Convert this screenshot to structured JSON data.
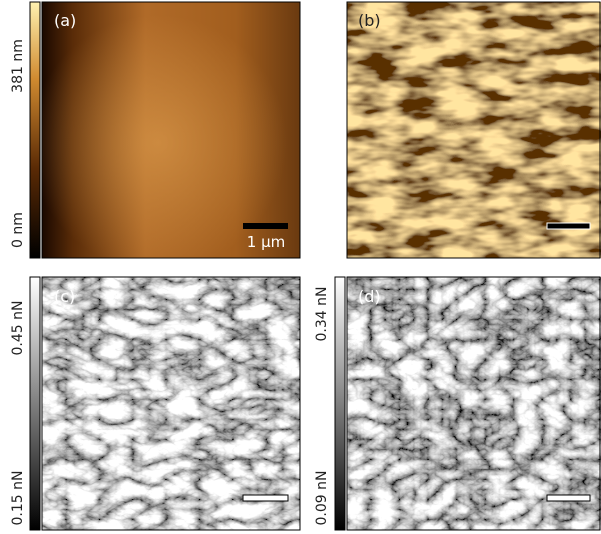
{
  "panels": [
    {
      "label": "(a)",
      "colorbar_max": "381 nm",
      "colorbar_min": "0 nm",
      "scale_bar": "1 µm"
    },
    {
      "label": "(b)"
    },
    {
      "label": "(c)",
      "colorbar_max": "0.45 nN",
      "colorbar_min": "0.15 nN"
    },
    {
      "label": "(d)",
      "colorbar_max": "0.34 nN",
      "colorbar_min": "0.09 nN"
    }
  ]
}
